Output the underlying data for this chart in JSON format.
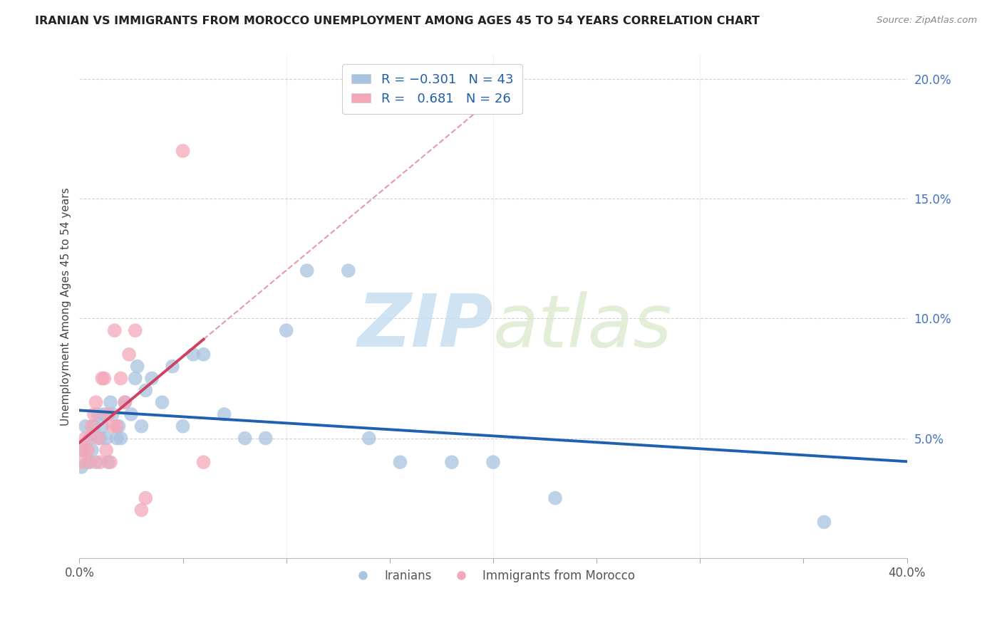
{
  "title": "IRANIAN VS IMMIGRANTS FROM MOROCCO UNEMPLOYMENT AMONG AGES 45 TO 54 YEARS CORRELATION CHART",
  "source": "Source: ZipAtlas.com",
  "ylabel": "Unemployment Among Ages 45 to 54 years",
  "xlim": [
    0.0,
    0.4
  ],
  "ylim": [
    0.0,
    0.21
  ],
  "yticks_right": [
    0.0,
    0.05,
    0.1,
    0.15,
    0.2
  ],
  "yticklabels_right": [
    "",
    "5.0%",
    "10.0%",
    "15.0%",
    "20.0%"
  ],
  "iranians_R": -0.301,
  "iranians_N": 43,
  "morocco_R": 0.681,
  "morocco_N": 26,
  "iranians_color": "#a8c4e0",
  "morocco_color": "#f4a7b9",
  "iranians_line_color": "#2060b0",
  "morocco_line_color": "#d04060",
  "trendline_dashed_color": "#e08090",
  "iranians_x": [
    0.001,
    0.002,
    0.003,
    0.004,
    0.005,
    0.006,
    0.007,
    0.008,
    0.009,
    0.01,
    0.011,
    0.012,
    0.013,
    0.014,
    0.015,
    0.016,
    0.018,
    0.019,
    0.02,
    0.022,
    0.025,
    0.027,
    0.028,
    0.03,
    0.032,
    0.035,
    0.04,
    0.045,
    0.05,
    0.055,
    0.06,
    0.07,
    0.08,
    0.09,
    0.1,
    0.11,
    0.13,
    0.14,
    0.155,
    0.18,
    0.2,
    0.23,
    0.36
  ],
  "iranians_y": [
    0.038,
    0.045,
    0.055,
    0.04,
    0.05,
    0.045,
    0.055,
    0.04,
    0.06,
    0.05,
    0.055,
    0.06,
    0.05,
    0.04,
    0.065,
    0.06,
    0.05,
    0.055,
    0.05,
    0.065,
    0.06,
    0.075,
    0.08,
    0.055,
    0.07,
    0.075,
    0.065,
    0.08,
    0.055,
    0.085,
    0.085,
    0.06,
    0.05,
    0.05,
    0.095,
    0.12,
    0.12,
    0.05,
    0.04,
    0.04,
    0.04,
    0.025,
    0.015
  ],
  "morocco_x": [
    0.001,
    0.002,
    0.003,
    0.004,
    0.005,
    0.006,
    0.007,
    0.008,
    0.009,
    0.01,
    0.011,
    0.012,
    0.013,
    0.014,
    0.015,
    0.016,
    0.017,
    0.018,
    0.02,
    0.022,
    0.024,
    0.027,
    0.03,
    0.032,
    0.05,
    0.06
  ],
  "morocco_y": [
    0.04,
    0.045,
    0.05,
    0.045,
    0.04,
    0.055,
    0.06,
    0.065,
    0.05,
    0.04,
    0.075,
    0.075,
    0.045,
    0.06,
    0.04,
    0.055,
    0.095,
    0.055,
    0.075,
    0.065,
    0.085,
    0.095,
    0.02,
    0.025,
    0.17,
    0.04
  ],
  "watermark_zip": "ZIP",
  "watermark_atlas": "atlas",
  "watermark_color": "#ddeef8",
  "background_color": "#ffffff",
  "grid_color": "#cccccc"
}
